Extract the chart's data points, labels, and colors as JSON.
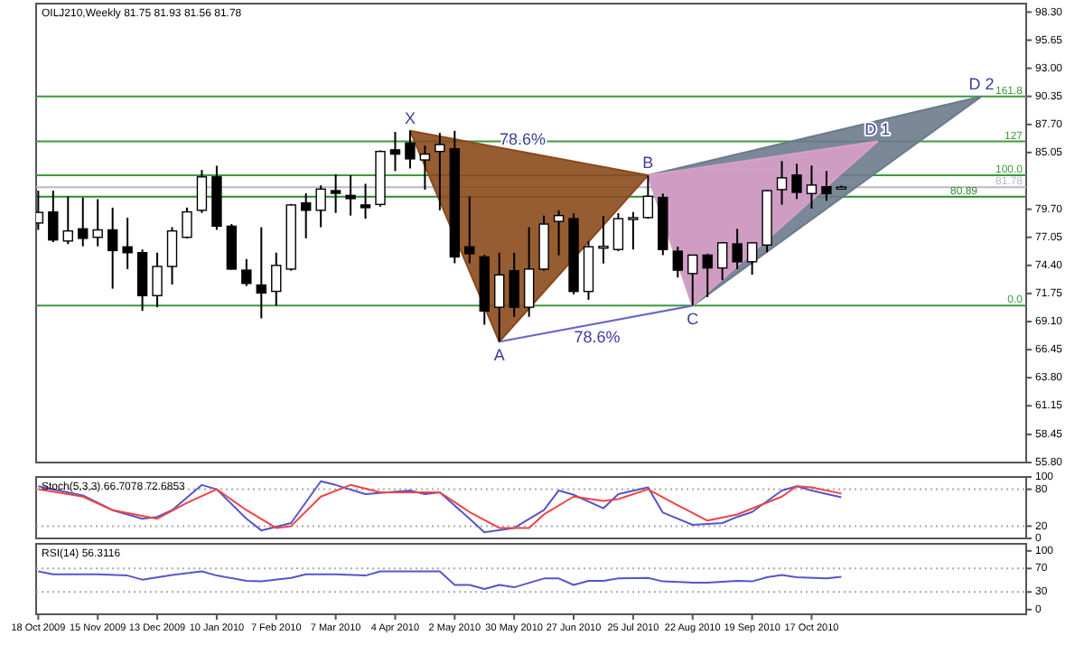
{
  "chart_data": [
    {
      "type": "candlestick",
      "title": "OILJ210,Weekly  81.75 81.93 81.56 81.78",
      "x": [
        "2009-10-18",
        "2009-10-25",
        "2009-11-01",
        "2009-11-08",
        "2009-11-15",
        "2009-11-22",
        "2009-11-29",
        "2009-12-06",
        "2009-12-13",
        "2009-12-20",
        "2009-12-27",
        "2010-01-03",
        "2010-01-10",
        "2010-01-17",
        "2010-01-24",
        "2010-01-31",
        "2010-02-07",
        "2010-02-14",
        "2010-02-21",
        "2010-02-28",
        "2010-03-07",
        "2010-03-14",
        "2010-03-21",
        "2010-03-28",
        "2010-04-04",
        "2010-04-11",
        "2010-04-18",
        "2010-04-25",
        "2010-05-02",
        "2010-05-09",
        "2010-05-16",
        "2010-05-23",
        "2010-05-30",
        "2010-06-06",
        "2010-06-13",
        "2010-06-20",
        "2010-06-27",
        "2010-07-04",
        "2010-07-11",
        "2010-07-18",
        "2010-07-25",
        "2010-08-01",
        "2010-08-08",
        "2010-08-15",
        "2010-08-22",
        "2010-08-29",
        "2010-09-05",
        "2010-09-12",
        "2010-09-19",
        "2010-09-26",
        "2010-10-03",
        "2010-10-10",
        "2010-10-17",
        "2010-10-24",
        "2010-10-31"
      ],
      "ohlc": [
        [
          78.4,
          81.45,
          77.75,
          79.4
        ],
        [
          79.44,
          81.45,
          76.6,
          76.8
        ],
        [
          76.7,
          80.9,
          76.4,
          77.65
        ],
        [
          77.85,
          80.8,
          76.2,
          76.95
        ],
        [
          77.05,
          80.65,
          76.2,
          77.75
        ],
        [
          77.75,
          79.85,
          72.2,
          75.8
        ],
        [
          76.15,
          78.9,
          74.05,
          75.6
        ],
        [
          75.6,
          75.9,
          70.1,
          71.55
        ],
        [
          71.55,
          75.6,
          70.45,
          74.3
        ],
        [
          74.3,
          78.0,
          72.6,
          77.65
        ],
        [
          77.05,
          79.85,
          76.95,
          79.45
        ],
        [
          79.6,
          83.4,
          79.35,
          82.75
        ],
        [
          82.75,
          83.8,
          77.75,
          78.1
        ],
        [
          78.1,
          78.3,
          74.0,
          74.05
        ],
        [
          73.95,
          75.0,
          72.45,
          72.7
        ],
        [
          72.55,
          78.0,
          69.4,
          71.8
        ],
        [
          71.95,
          75.6,
          70.6,
          74.4
        ],
        [
          74.05,
          80.2,
          73.9,
          80.1
        ],
        [
          80.3,
          81.2,
          76.95,
          79.6
        ],
        [
          79.6,
          81.95,
          78.0,
          81.6
        ],
        [
          81.45,
          83.0,
          79.35,
          81.2
        ],
        [
          81.0,
          82.9,
          79.1,
          80.7
        ],
        [
          80.1,
          82.1,
          78.8,
          79.85
        ],
        [
          80.15,
          85.25,
          79.95,
          85.15
        ],
        [
          85.3,
          87.0,
          83.3,
          84.9
        ],
        [
          85.95,
          87.1,
          83.55,
          84.45
        ],
        [
          84.35,
          85.7,
          81.55,
          84.9
        ],
        [
          85.15,
          86.9,
          79.6,
          85.8
        ],
        [
          85.4,
          87.1,
          74.6,
          75.2
        ],
        [
          76.15,
          80.9,
          74.6,
          75.5
        ],
        [
          75.2,
          75.4,
          68.8,
          70.1
        ],
        [
          70.45,
          75.6,
          67.2,
          73.5
        ],
        [
          73.9,
          75.6,
          69.55,
          70.45
        ],
        [
          70.45,
          78.0,
          69.55,
          74.05
        ],
        [
          74.05,
          79.1,
          73.9,
          78.3
        ],
        [
          78.55,
          79.6,
          75.35,
          79.1
        ],
        [
          78.81,
          79.33,
          71.67,
          71.94
        ],
        [
          71.94,
          76.69,
          71.15,
          76.16
        ],
        [
          76.1,
          79.07,
          74.58,
          76.2
        ],
        [
          75.9,
          79.33,
          75.74,
          78.81
        ],
        [
          78.8,
          79.44,
          75.9,
          78.9
        ],
        [
          78.91,
          82.87,
          78.81,
          80.92
        ],
        [
          80.81,
          81.18,
          75.37,
          75.9
        ],
        [
          75.74,
          76.16,
          73.26,
          73.95
        ],
        [
          73.63,
          75.37,
          70.62,
          75.37
        ],
        [
          75.37,
          75.5,
          71.41,
          74.16
        ],
        [
          74.16,
          76.6,
          73.0,
          76.53
        ],
        [
          76.43,
          77.85,
          74.05,
          74.74
        ],
        [
          74.74,
          76.6,
          73.52,
          76.53
        ],
        [
          76.32,
          81.5,
          75.64,
          81.45
        ],
        [
          81.55,
          84.25,
          80.13,
          82.66
        ],
        [
          82.93,
          83.98,
          80.66,
          81.29
        ],
        [
          81.18,
          83.82,
          79.76,
          81.98
        ],
        [
          81.82,
          83.3,
          80.5,
          81.18
        ],
        [
          81.75,
          81.93,
          81.56,
          81.78
        ]
      ],
      "xlim": [
        "2009-10-17",
        "2011-01-26"
      ],
      "ylim": [
        55.8,
        99.1
      ],
      "yticks": [
        {
          "value": 98.3,
          "label": "98.30"
        },
        {
          "value": 95.65,
          "label": "95.65"
        },
        {
          "value": 93.0,
          "label": "93.00"
        },
        {
          "value": 90.35,
          "label": "90.35"
        },
        {
          "value": 87.7,
          "label": "87.70"
        },
        {
          "value": 85.05,
          "label": "85.05"
        },
        {
          "value": 79.7,
          "label": "79.70"
        },
        {
          "value": 77.05,
          "label": "77.05"
        },
        {
          "value": 74.4,
          "label": "74.40"
        },
        {
          "value": 71.75,
          "label": "71.75"
        },
        {
          "value": 69.1,
          "label": "69.10"
        },
        {
          "value": 66.45,
          "label": "66.45"
        },
        {
          "value": 63.8,
          "label": "63.80"
        },
        {
          "value": 61.15,
          "label": "61.15"
        },
        {
          "value": 58.45,
          "label": "58.45"
        },
        {
          "value": 55.8,
          "label": "55.80"
        }
      ],
      "tick_labels": "y",
      "ref_lines": [
        {
          "axis": "y",
          "value": 90.35,
          "color": "#3c9a3c"
        },
        {
          "axis": "y",
          "value": 86.1,
          "color": "#3c9a3c"
        },
        {
          "axis": "y",
          "value": 82.9,
          "color": "#3c9a3c"
        },
        {
          "axis": "y",
          "value": 81.78,
          "label": "81.78",
          "color": "#b8b8c8"
        },
        {
          "axis": "y",
          "value": 80.89,
          "label": "80.89",
          "color": "#2e8b2e"
        },
        {
          "axis": "y",
          "value": 70.6,
          "color": "#3c9a3c"
        }
      ],
      "series": [
        {
          "type": "area",
          "color": "#6b7b8c",
          "x": [
            "2010-08-01",
            "2010-08-22",
            "2011-01-05",
            "2010-08-01"
          ],
          "values": [
            82.9,
            70.6,
            90.35,
            82.9
          ]
        },
        {
          "type": "area",
          "color": "#d8a0c8",
          "x": [
            "2010-08-01",
            "2010-08-22",
            "2010-11-17",
            "2010-08-01"
          ],
          "values": [
            82.9,
            70.6,
            86.1,
            82.9
          ]
        },
        {
          "type": "area",
          "color": "#8b4a1c",
          "x": [
            "2010-04-11",
            "2010-05-23",
            "2010-08-01",
            "2010-04-11"
          ],
          "values": [
            87.1,
            67.2,
            82.9,
            87.1
          ]
        },
        {
          "type": "line",
          "color": "#6666cc",
          "x": [
            "2010-05-23",
            "2010-08-22"
          ],
          "values": [
            67.2,
            70.6
          ]
        }
      ],
      "annotations": [
        {
          "text": "X",
          "x": "2010-04-11",
          "y": 87.1
        },
        {
          "text": "A",
          "x": "2010-05-23",
          "y": 67.2
        },
        {
          "text": "B",
          "x": "2010-08-01",
          "y": 82.9
        },
        {
          "text": "C",
          "x": "2010-08-22",
          "y": 70.6
        },
        {
          "text": "D 1",
          "x": "2010-11-17",
          "y": 86.1
        },
        {
          "text": "D 2",
          "x": "2011-01-05",
          "y": 90.35
        },
        {
          "text": "78.6%",
          "x": "2010-06-03",
          "y": 85.1
        },
        {
          "text": "78.6%",
          "x": "2010-07-08",
          "y": 68.9
        },
        {
          "text": "161.8",
          "x": "2011-01-26",
          "y": 90.35
        },
        {
          "text": "127",
          "x": "2011-01-26",
          "y": 86.1
        },
        {
          "text": "100.0",
          "x": "2011-01-26",
          "y": 82.9
        },
        {
          "text": "0.0",
          "x": "2011-01-26",
          "y": 70.6
        }
      ]
    },
    {
      "type": "line",
      "title": "Stoch(5,3,3) 66.7078 72.6853",
      "xlim": [
        "2009-10-17",
        "2011-01-26"
      ],
      "ylim": [
        0,
        100
      ],
      "yticks": [
        0,
        20,
        80,
        100
      ],
      "tick_labels": "y",
      "ref_lines": [
        {
          "axis": "y",
          "value": 20,
          "color": "#aaaaaa",
          "line_style": "dotted"
        },
        {
          "axis": "y",
          "value": 80,
          "color": "#aaaaaa",
          "line_style": "dotted"
        }
      ],
      "series": [
        {
          "color": "#5555cc",
          "x": [
            "2009-10-18",
            "2009-11-08",
            "2009-11-22",
            "2009-12-06",
            "2009-12-13",
            "2009-12-20",
            "2010-01-03",
            "2010-01-10",
            "2010-01-24",
            "2010-01-31",
            "2010-02-14",
            "2010-02-28",
            "2010-03-07",
            "2010-03-21",
            "2010-04-11",
            "2010-04-18",
            "2010-04-25",
            "2010-05-09",
            "2010-05-16",
            "2010-05-30",
            "2010-06-13",
            "2010-06-20",
            "2010-06-27",
            "2010-07-11",
            "2010-07-18",
            "2010-08-01",
            "2010-08-08",
            "2010-08-22",
            "2010-09-05",
            "2010-09-12",
            "2010-09-19",
            "2010-10-03",
            "2010-10-10",
            "2010-10-17",
            "2010-10-31"
          ],
          "values": [
            85,
            70,
            46,
            32,
            35,
            46,
            87,
            80,
            32,
            13,
            25,
            93,
            87,
            72,
            78,
            72,
            75,
            32,
            10,
            17,
            46,
            78,
            71,
            49,
            72,
            83,
            42,
            22,
            25,
            35,
            43,
            78,
            85,
            78,
            67
          ]
        },
        {
          "color": "#ee4444",
          "x": [
            "2009-10-18",
            "2009-11-08",
            "2009-11-22",
            "2009-12-13",
            "2009-12-27",
            "2010-01-10",
            "2010-01-24",
            "2010-02-07",
            "2010-02-14",
            "2010-02-28",
            "2010-03-14",
            "2010-03-28",
            "2010-04-11",
            "2010-04-25",
            "2010-05-09",
            "2010-05-23",
            "2010-06-06",
            "2010-06-13",
            "2010-06-27",
            "2010-07-11",
            "2010-07-18",
            "2010-08-01",
            "2010-08-15",
            "2010-08-29",
            "2010-09-12",
            "2010-10-03",
            "2010-10-10",
            "2010-10-17",
            "2010-10-31"
          ],
          "values": [
            80,
            68,
            46,
            32,
            58,
            80,
            46,
            17,
            20,
            68,
            87,
            75,
            75,
            75,
            43,
            17,
            17,
            39,
            68,
            61,
            64,
            80,
            54,
            29,
            39,
            68,
            85,
            83,
            73
          ]
        }
      ]
    },
    {
      "type": "line",
      "title": "RSI(14) 56.3116",
      "xlim": [
        "2009-10-17",
        "2011-01-26"
      ],
      "ylim": [
        -8,
        112
      ],
      "yticks": [
        0,
        30,
        70,
        100
      ],
      "xticks": [
        {
          "value": "2009-10-18",
          "label": "18 Oct 2009"
        },
        {
          "value": "2009-11-15",
          "label": "15 Nov 2009"
        },
        {
          "value": "2009-12-13",
          "label": "13 Dec 2009"
        },
        {
          "value": "2010-01-10",
          "label": "10 Jan 2010"
        },
        {
          "value": "2010-02-07",
          "label": "7 Feb 2010"
        },
        {
          "value": "2010-03-07",
          "label": "7 Mar 2010"
        },
        {
          "value": "2010-04-04",
          "label": "4 Apr 2010"
        },
        {
          "value": "2010-05-02",
          "label": "2 May 2010"
        },
        {
          "value": "2010-05-30",
          "label": "30 May 2010"
        },
        {
          "value": "2010-06-27",
          "label": "27 Jun 2010"
        },
        {
          "value": "2010-07-25",
          "label": "25 Jul 2010"
        },
        {
          "value": "2010-08-22",
          "label": "22 Aug 2010"
        },
        {
          "value": "2010-09-19",
          "label": "19 Sep 2010"
        },
        {
          "value": "2010-10-17",
          "label": "17 Oct 2010"
        }
      ],
      "ref_lines": [
        {
          "axis": "y",
          "value": 30,
          "color": "#aaaaaa",
          "line_style": "dotted"
        },
        {
          "axis": "y",
          "value": 70,
          "color": "#aaaaaa",
          "line_style": "dotted"
        }
      ],
      "series": [
        {
          "color": "#5555cc",
          "x": [
            "2009-10-18",
            "2009-10-25",
            "2009-11-15",
            "2009-11-29",
            "2009-12-06",
            "2009-12-20",
            "2010-01-03",
            "2010-01-10",
            "2010-01-24",
            "2010-01-31",
            "2010-02-14",
            "2010-02-21",
            "2010-03-07",
            "2010-03-21",
            "2010-03-28",
            "2010-04-25",
            "2010-05-02",
            "2010-05-09",
            "2010-05-16",
            "2010-05-23",
            "2010-05-30",
            "2010-06-13",
            "2010-06-20",
            "2010-06-27",
            "2010-07-04",
            "2010-07-11",
            "2010-07-18",
            "2010-08-01",
            "2010-08-08",
            "2010-08-22",
            "2010-08-29",
            "2010-09-12",
            "2010-09-19",
            "2010-09-26",
            "2010-10-03",
            "2010-10-10",
            "2010-10-24",
            "2010-10-31"
          ],
          "values": [
            65,
            60,
            60,
            58,
            51,
            59,
            65,
            58,
            49,
            48,
            54,
            60,
            60,
            58,
            65,
            65,
            42,
            42,
            35,
            42,
            38,
            53,
            53,
            42,
            49,
            49,
            53,
            54,
            48,
            46,
            46,
            49,
            48,
            55,
            59,
            55,
            53,
            56
          ]
        }
      ]
    }
  ]
}
